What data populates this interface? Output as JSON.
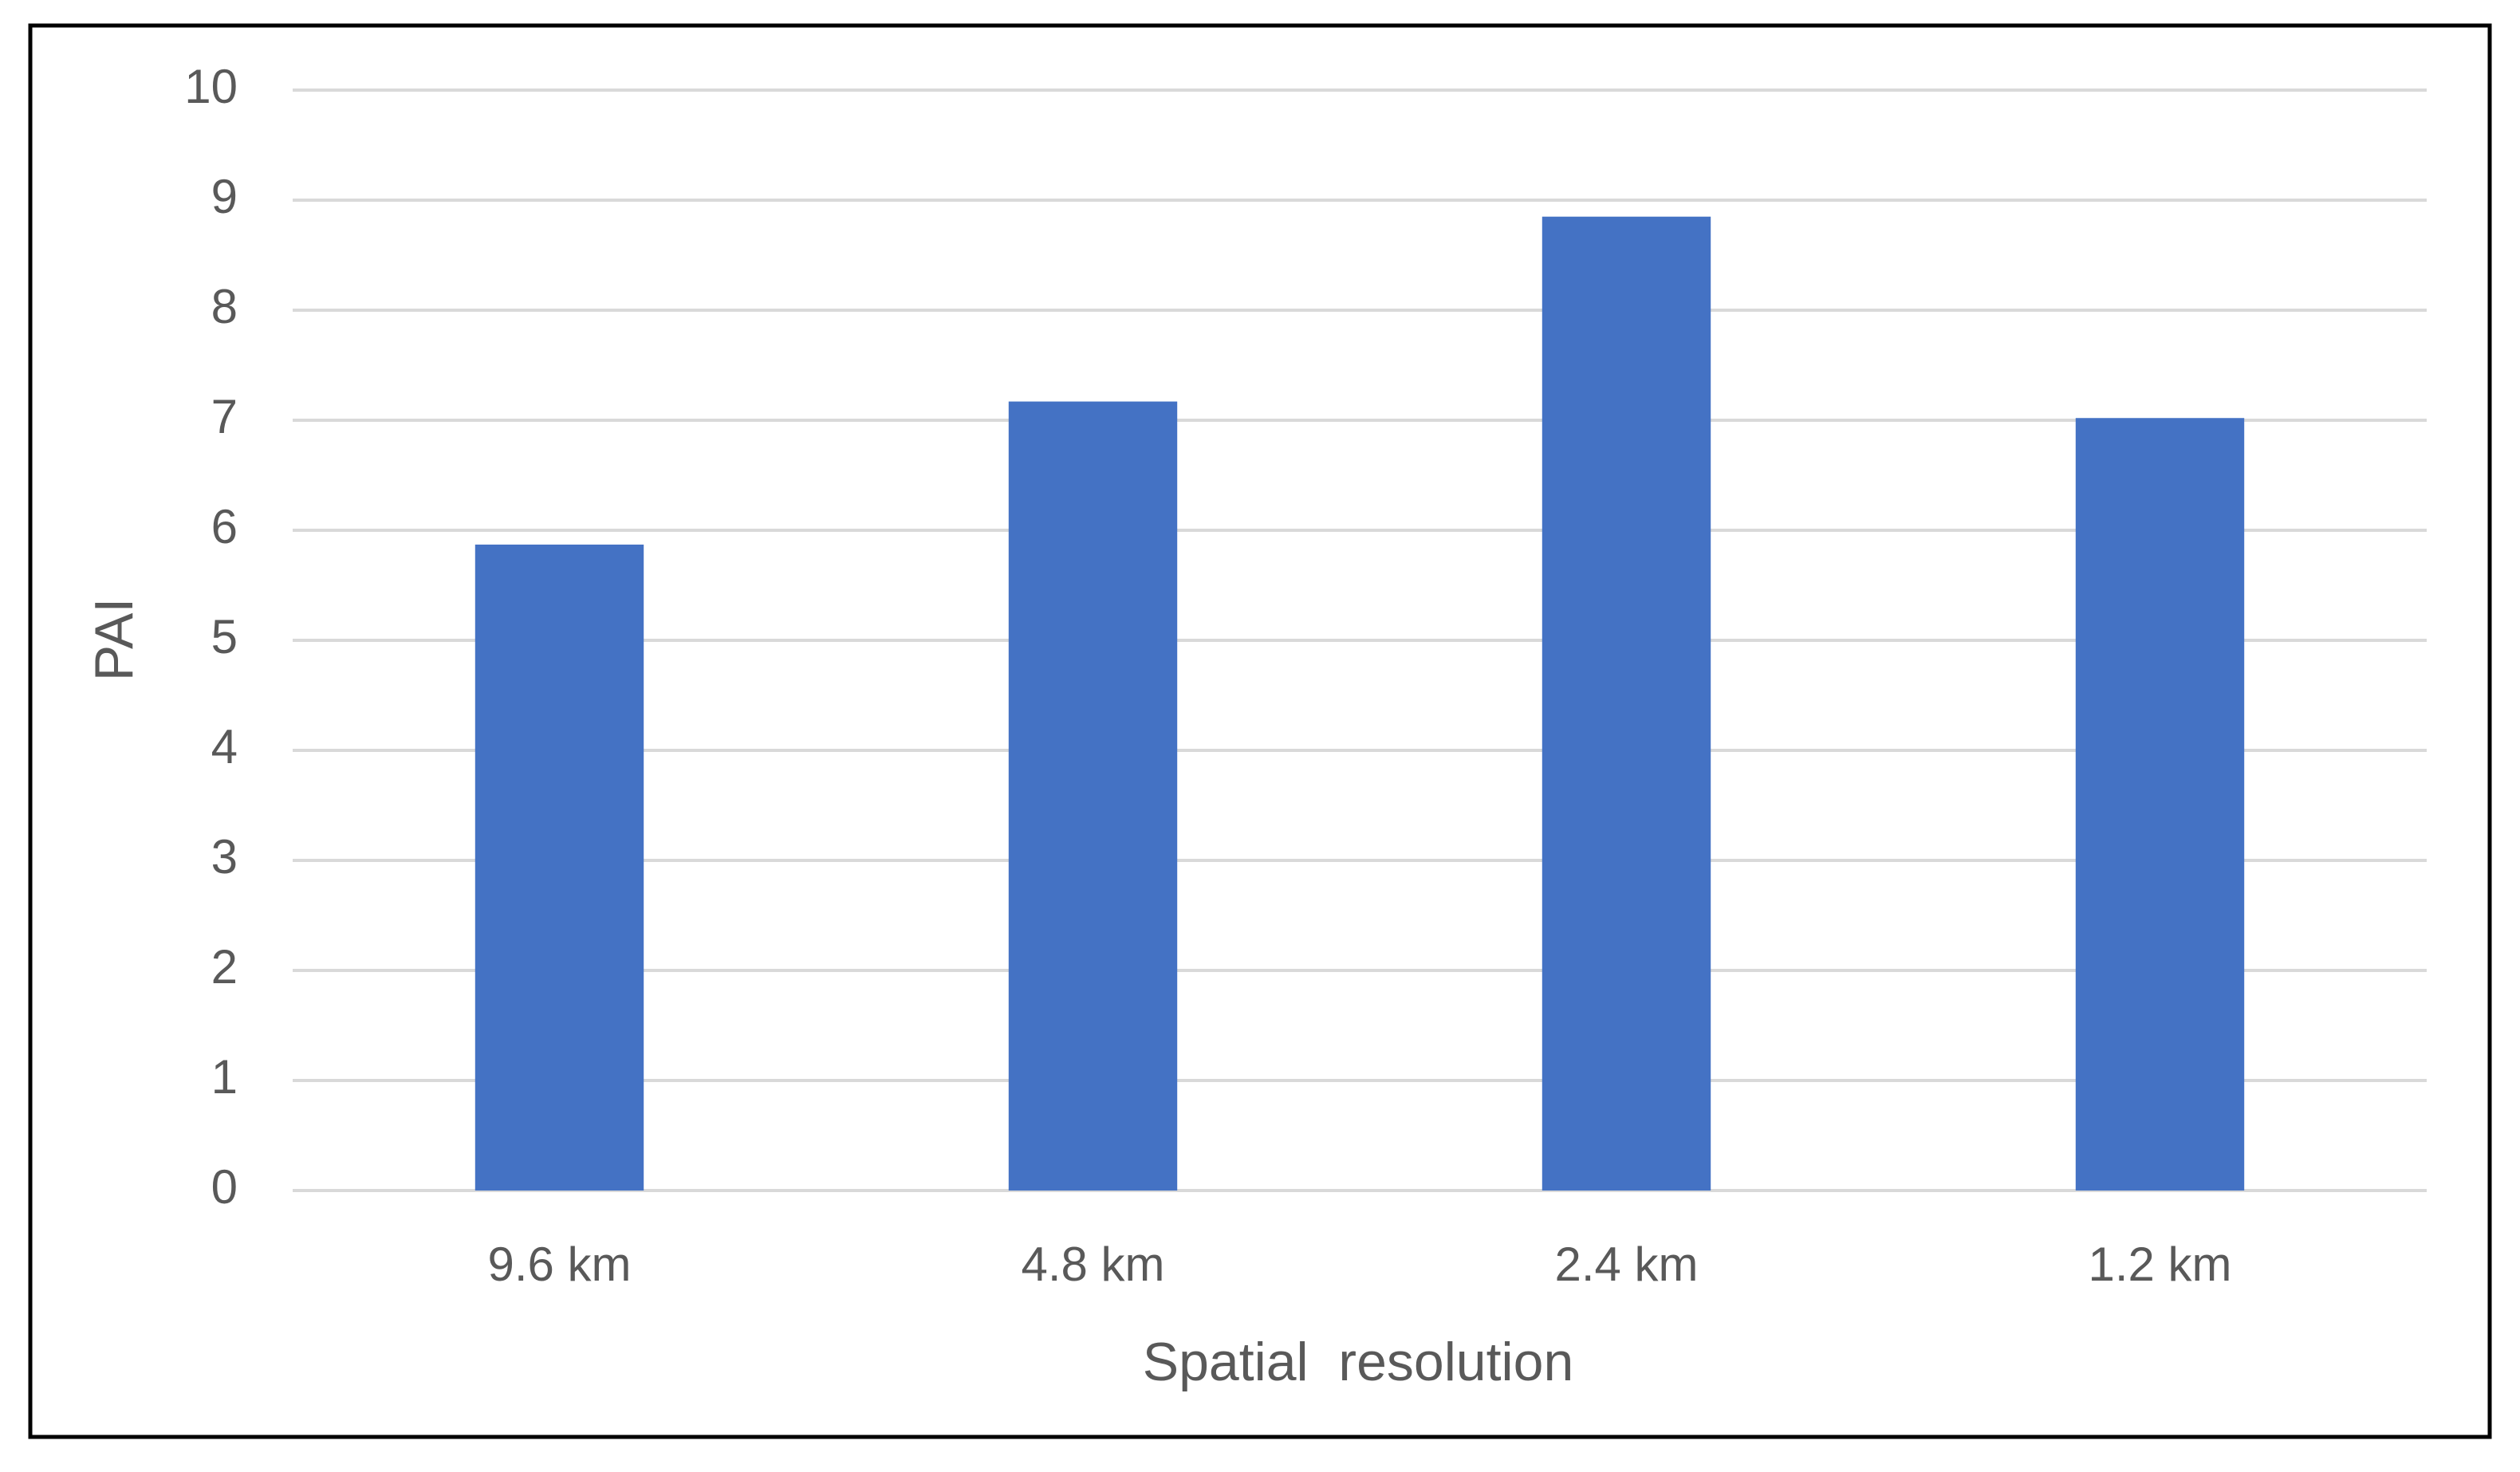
{
  "chart_data": {
    "type": "bar",
    "x_label": "Spatial  resolution",
    "y_label": "PAI",
    "categories": [
      "9.6 km",
      "4.8 km",
      "2.4 km",
      "1.2 km"
    ],
    "values": [
      5.87,
      7.17,
      8.85,
      7.02
    ],
    "color": "#4472c4",
    "ylim": [
      0,
      10
    ],
    "yticks": [
      0,
      1,
      2,
      3,
      4,
      5,
      6,
      7,
      8,
      9,
      10
    ],
    "grid": true
  }
}
